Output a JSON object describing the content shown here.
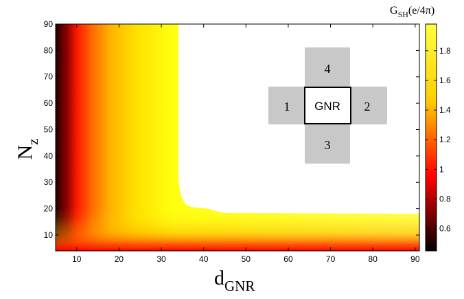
{
  "chart_data": {
    "type": "heatmap",
    "xlabel_main": "d",
    "xlabel_sub": "GNR",
    "ylabel_main": "N",
    "ylabel_sub": "z",
    "colorbar_title_main": "G",
    "colorbar_title_sub": "SH",
    "colorbar_title_tail": "(e/4π)",
    "xlim": [
      5,
      91
    ],
    "ylim": [
      4,
      90
    ],
    "x_ticks": [
      10,
      20,
      30,
      40,
      50,
      60,
      70,
      80,
      90
    ],
    "y_ticks": [
      10,
      20,
      30,
      40,
      50,
      60,
      70,
      80,
      90
    ],
    "clim": [
      0.45,
      1.98
    ],
    "colorbar_ticks": [
      0.6,
      0.8,
      1,
      1.2,
      1.4,
      1.6,
      1.8
    ],
    "colormap": "hot",
    "masked_region": {
      "description": "white (undefined) region",
      "x_from": 34,
      "y_top": 90,
      "boundary_y_at_large_x": 17.5
    },
    "inset": {
      "center_label": "GNR",
      "leads": [
        "1",
        "2",
        "3",
        "4"
      ]
    }
  }
}
